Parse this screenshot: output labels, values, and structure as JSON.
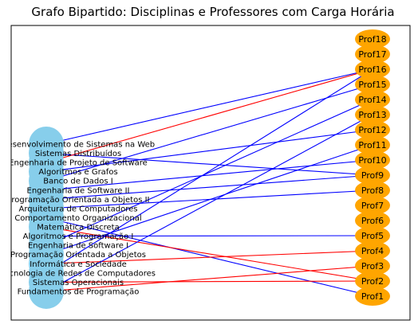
{
  "title": "Grafo Bipartido: Disciplinas e Professores com Carga Horária",
  "colors": {
    "discipline_node": "#87ceeb",
    "professor_node": "#ffa500",
    "edge_default": "#0000ff",
    "edge_highlight": "#ff0000",
    "frame": "#000000"
  },
  "disciplines": [
    "Desenvolvimento de Sistemas na Web",
    "Sistemas Distribuídos",
    "Engenharia de Projeto de Software",
    "Algoritmos e Grafos",
    "Banco de Dados I",
    "Engenharia de Software II",
    "Programação Orientada a Objetos II",
    "Arquitetura de Computadores",
    "Comportamento Organizacional",
    "Matemática Discreta",
    "Algoritmos e Programação I",
    "Engenharia de Software I",
    "Programação Orientada a Objetos",
    "Informática e Sociedade",
    "Tecnologia de Redes de Computadores",
    "Sistemas Operacionais",
    "Fundamentos de Programação"
  ],
  "professors": [
    "Prof18",
    "Prof17",
    "Prof16",
    "Prof15",
    "Prof14",
    "Prof13",
    "Prof12",
    "Prof11",
    "Prof10",
    "Prof9",
    "Prof8",
    "Prof7",
    "Prof6",
    "Prof5",
    "Prof4",
    "Prof3",
    "Prof2",
    "Prof1"
  ],
  "edges": [
    {
      "from": "Desenvolvimento de Sistemas na Web",
      "to": "Prof16",
      "highlight": false
    },
    {
      "from": "Sistemas Distribuídos",
      "to": "Prof9",
      "highlight": false
    },
    {
      "from": "Engenharia de Projeto de Software",
      "to": "Prof16",
      "highlight": true
    },
    {
      "from": "Algoritmos e Grafos",
      "to": "Prof12",
      "highlight": false
    },
    {
      "from": "Banco de Dados I",
      "to": "Prof15",
      "highlight": false
    },
    {
      "from": "Engenharia de Software II",
      "to": "Prof10",
      "highlight": false
    },
    {
      "from": "Programação Orientada a Objetos II",
      "to": "Prof9",
      "highlight": false
    },
    {
      "from": "Arquitetura de Computadores",
      "to": "Prof8",
      "highlight": false
    },
    {
      "from": "Comportamento Organizacional",
      "to": "Prof1",
      "highlight": false
    },
    {
      "from": "Matemática Discreta",
      "to": "Prof2",
      "highlight": true
    },
    {
      "from": "Algoritmos e Programação I",
      "to": "Prof5",
      "highlight": false
    },
    {
      "from": "Engenharia de Software I",
      "to": "Prof14",
      "highlight": false
    },
    {
      "from": "Programação Orientada a Objetos",
      "to": "Prof11",
      "highlight": false
    },
    {
      "from": "Informática e Sociedade",
      "to": "Prof4",
      "highlight": true
    },
    {
      "from": "Tecnologia de Redes de Computadores",
      "to": "Prof16",
      "highlight": false
    },
    {
      "from": "Sistemas Operacionais",
      "to": "Prof2",
      "highlight": true
    },
    {
      "from": "Fundamentos de Programação",
      "to": "Prof3",
      "highlight": true
    },
    {
      "from": "Fundamentos de Programação",
      "to": "Prof13",
      "highlight": false
    }
  ]
}
